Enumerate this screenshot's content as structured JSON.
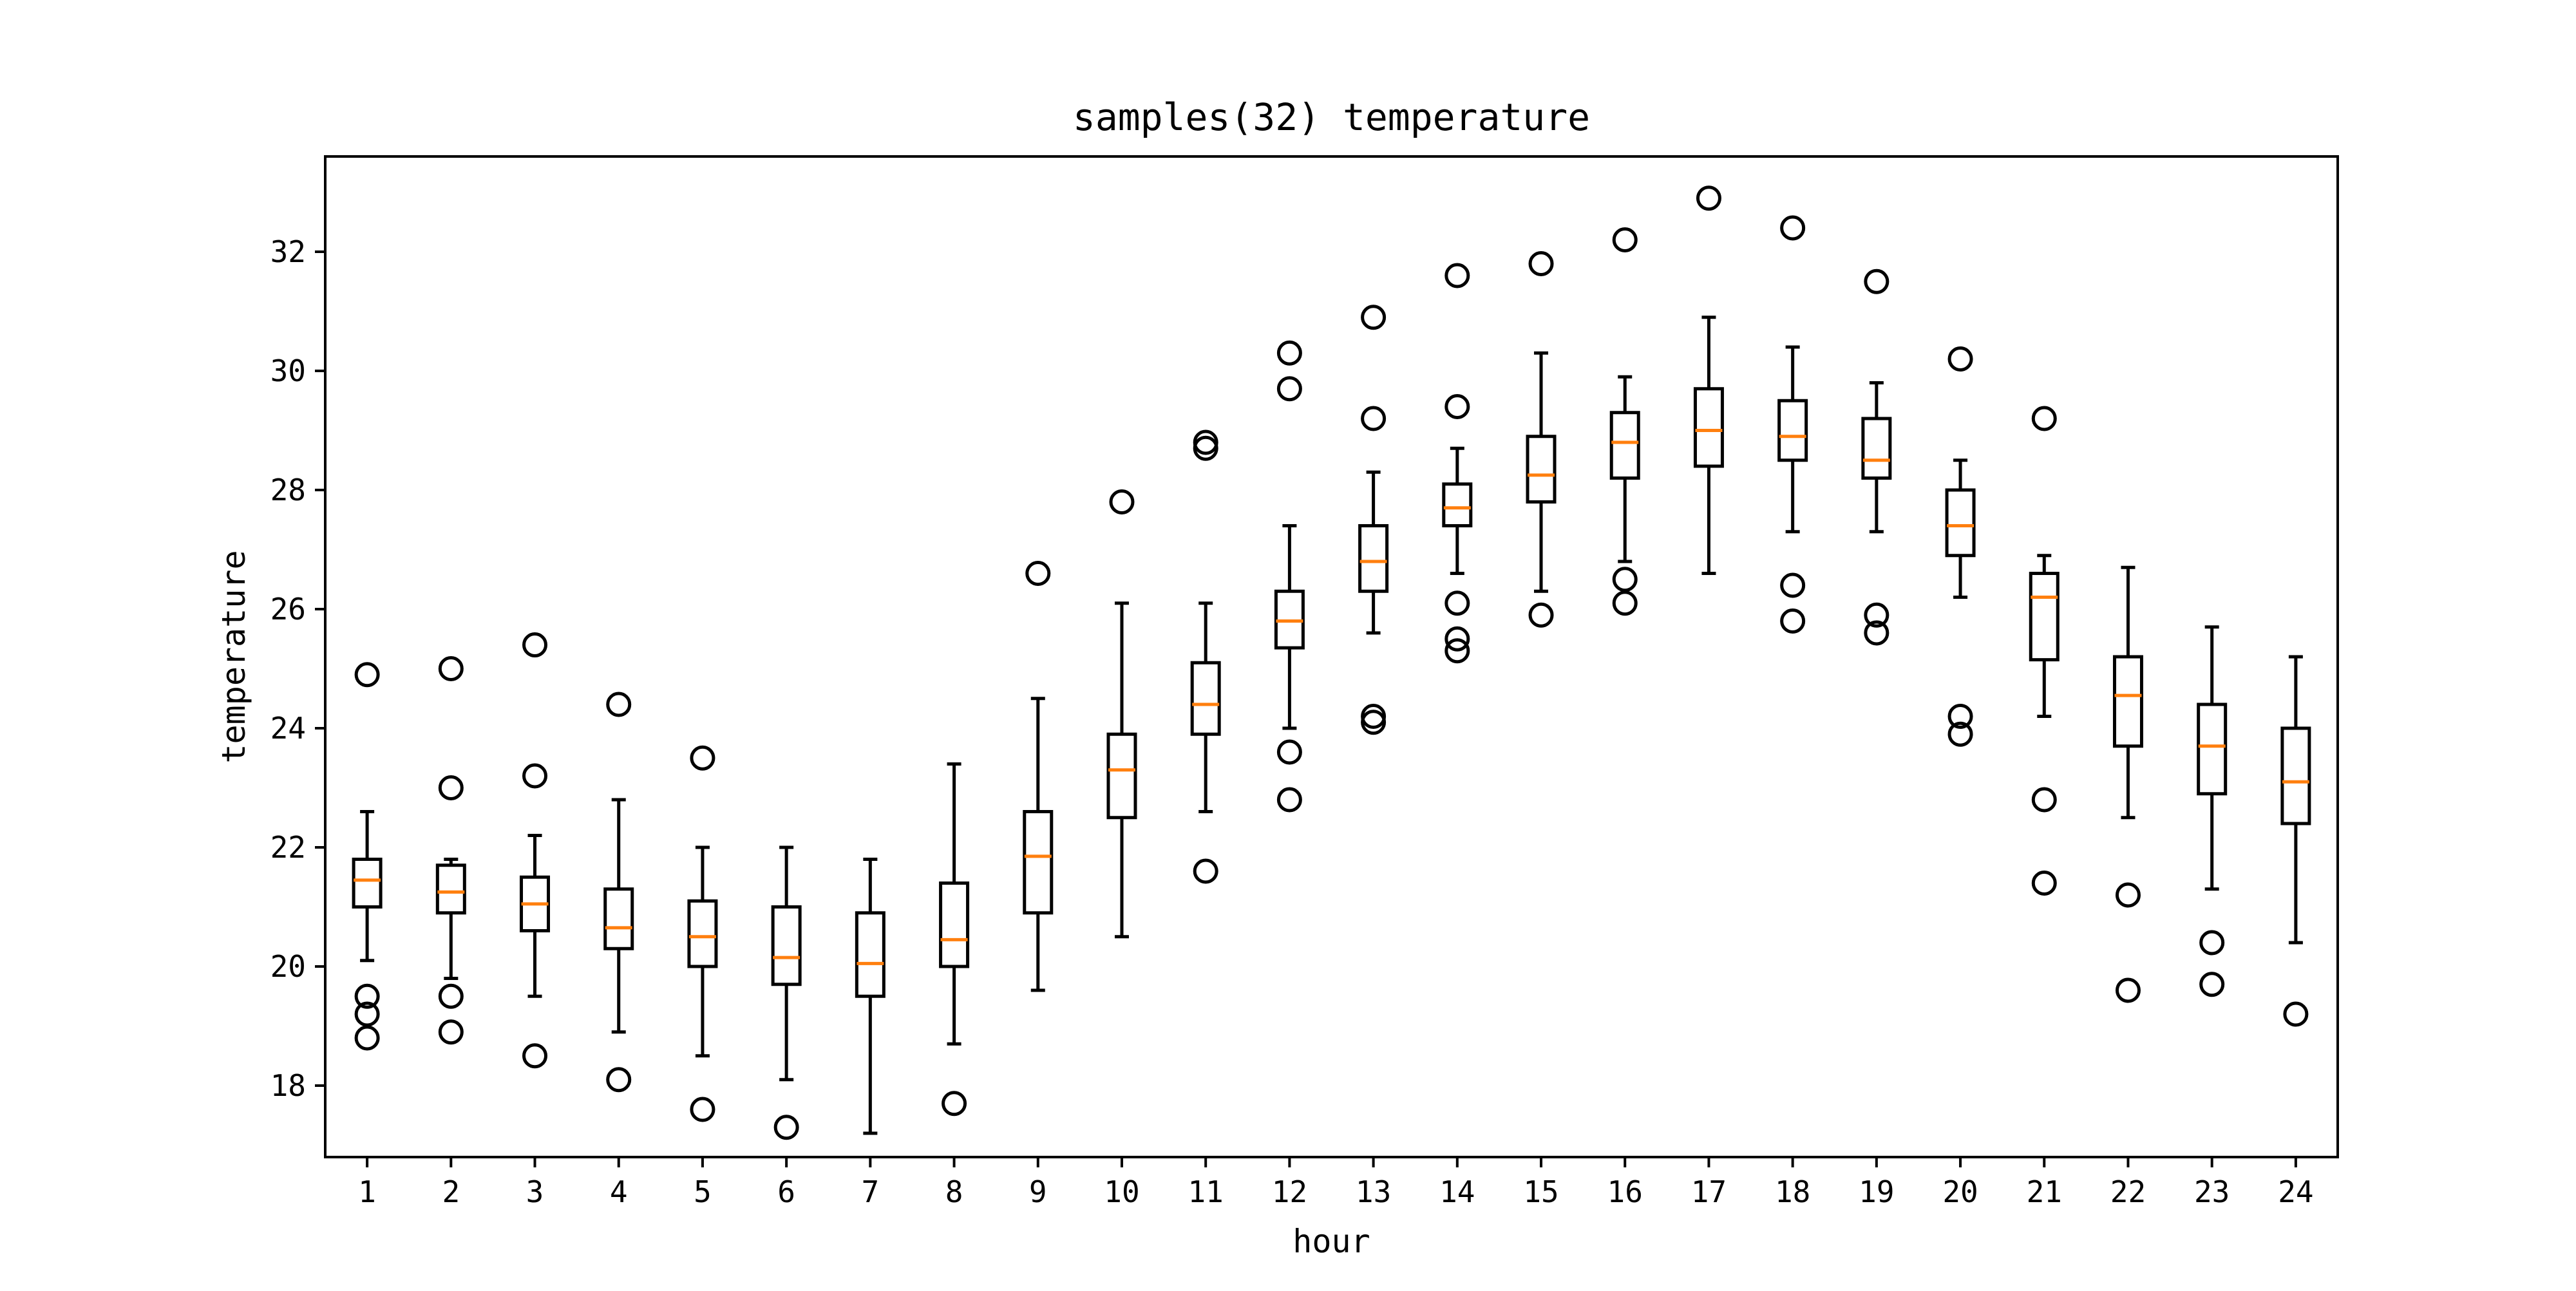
{
  "chart_data": {
    "type": "boxplot",
    "title": "samples(32) temperature",
    "xlabel": "hour",
    "ylabel": "temperature",
    "xlim": [
      0.5,
      24.5
    ],
    "ylim": [
      16.8,
      33.6
    ],
    "yticks": [
      18,
      20,
      22,
      24,
      26,
      28,
      30,
      32
    ],
    "grid": false,
    "colors": {
      "box": "#000000",
      "median": "#ff7f0e",
      "background": "#ffffff"
    },
    "categories": [
      "1",
      "2",
      "3",
      "4",
      "5",
      "6",
      "7",
      "8",
      "9",
      "10",
      "11",
      "12",
      "13",
      "14",
      "15",
      "16",
      "17",
      "18",
      "19",
      "20",
      "21",
      "22",
      "23",
      "24"
    ],
    "boxes": [
      {
        "whislo": 20.1,
        "q1": 21.0,
        "med": 21.45,
        "q3": 21.8,
        "whishi": 22.6,
        "fliers": [
          24.9,
          19.5,
          19.2,
          18.8
        ]
      },
      {
        "whislo": 19.8,
        "q1": 20.9,
        "med": 21.25,
        "q3": 21.7,
        "whishi": 21.8,
        "fliers": [
          25.0,
          23.0,
          19.5,
          18.9
        ]
      },
      {
        "whislo": 19.5,
        "q1": 20.6,
        "med": 21.05,
        "q3": 21.5,
        "whishi": 22.2,
        "fliers": [
          25.4,
          23.2,
          18.5
        ]
      },
      {
        "whislo": 18.9,
        "q1": 20.3,
        "med": 20.65,
        "q3": 21.3,
        "whishi": 22.8,
        "fliers": [
          24.4,
          18.1
        ]
      },
      {
        "whislo": 18.5,
        "q1": 20.0,
        "med": 20.5,
        "q3": 21.1,
        "whishi": 22.0,
        "fliers": [
          23.5,
          17.6
        ]
      },
      {
        "whislo": 18.1,
        "q1": 19.7,
        "med": 20.15,
        "q3": 21.0,
        "whishi": 22.0,
        "fliers": [
          17.3
        ]
      },
      {
        "whislo": 17.2,
        "q1": 19.5,
        "med": 20.05,
        "q3": 20.9,
        "whishi": 21.8,
        "fliers": []
      },
      {
        "whislo": 18.7,
        "q1": 20.0,
        "med": 20.45,
        "q3": 21.4,
        "whishi": 23.4,
        "fliers": [
          17.7
        ]
      },
      {
        "whislo": 19.6,
        "q1": 20.9,
        "med": 21.85,
        "q3": 22.6,
        "whishi": 24.5,
        "fliers": [
          26.6
        ]
      },
      {
        "whislo": 20.5,
        "q1": 22.5,
        "med": 23.3,
        "q3": 23.9,
        "whishi": 26.1,
        "fliers": [
          27.8
        ]
      },
      {
        "whislo": 22.6,
        "q1": 23.9,
        "med": 24.4,
        "q3": 25.1,
        "whishi": 26.1,
        "fliers": [
          28.8,
          28.7,
          21.6
        ]
      },
      {
        "whislo": 24.0,
        "q1": 25.35,
        "med": 25.8,
        "q3": 26.3,
        "whishi": 27.4,
        "fliers": [
          30.3,
          29.7,
          23.6,
          22.8
        ]
      },
      {
        "whislo": 25.6,
        "q1": 26.3,
        "med": 26.8,
        "q3": 27.4,
        "whishi": 28.3,
        "fliers": [
          30.9,
          29.2,
          24.2,
          24.1
        ]
      },
      {
        "whislo": 26.6,
        "q1": 27.4,
        "med": 27.7,
        "q3": 28.1,
        "whishi": 28.7,
        "fliers": [
          31.6,
          29.4,
          26.1,
          25.5,
          25.3
        ]
      },
      {
        "whislo": 26.3,
        "q1": 27.8,
        "med": 28.25,
        "q3": 28.9,
        "whishi": 30.3,
        "fliers": [
          31.8,
          25.9
        ]
      },
      {
        "whislo": 26.8,
        "q1": 28.2,
        "med": 28.8,
        "q3": 29.3,
        "whishi": 29.9,
        "fliers": [
          32.2,
          26.5,
          26.1
        ]
      },
      {
        "whislo": 26.6,
        "q1": 28.4,
        "med": 29.0,
        "q3": 29.7,
        "whishi": 30.9,
        "fliers": [
          32.9
        ]
      },
      {
        "whislo": 27.3,
        "q1": 28.5,
        "med": 28.9,
        "q3": 29.5,
        "whishi": 30.4,
        "fliers": [
          32.4,
          26.4,
          25.8
        ]
      },
      {
        "whislo": 27.3,
        "q1": 28.2,
        "med": 28.5,
        "q3": 29.2,
        "whishi": 29.8,
        "fliers": [
          31.5,
          25.9,
          25.6
        ]
      },
      {
        "whislo": 26.2,
        "q1": 26.9,
        "med": 27.4,
        "q3": 28.0,
        "whishi": 28.5,
        "fliers": [
          30.2,
          24.2,
          23.9
        ]
      },
      {
        "whislo": 24.2,
        "q1": 25.15,
        "med": 26.2,
        "q3": 26.6,
        "whishi": 26.9,
        "fliers": [
          29.2,
          22.8,
          21.4
        ]
      },
      {
        "whislo": 22.5,
        "q1": 23.7,
        "med": 24.55,
        "q3": 25.2,
        "whishi": 26.7,
        "fliers": [
          21.2,
          19.6
        ]
      },
      {
        "whislo": 21.3,
        "q1": 22.9,
        "med": 23.7,
        "q3": 24.4,
        "whishi": 25.7,
        "fliers": [
          20.4,
          19.7
        ]
      },
      {
        "whislo": 20.4,
        "q1": 22.4,
        "med": 23.1,
        "q3": 24.0,
        "whishi": 25.2,
        "fliers": [
          19.2
        ]
      }
    ]
  }
}
